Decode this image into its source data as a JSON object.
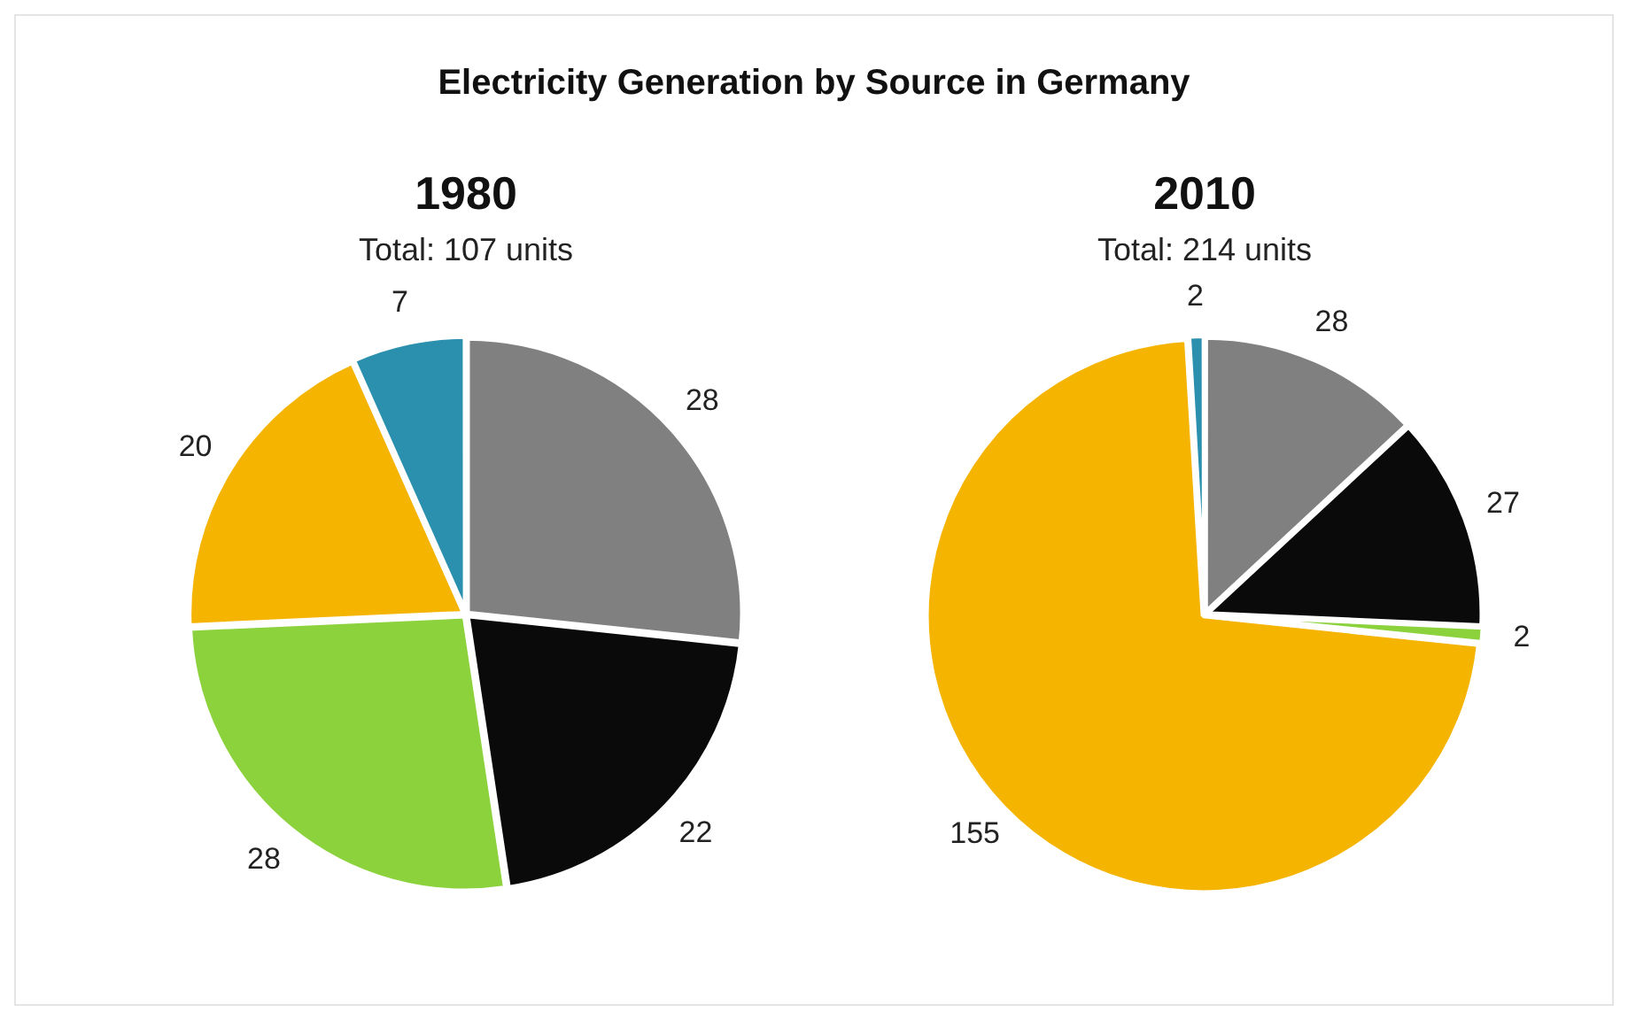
{
  "chart_data": [
    {
      "type": "other",
      "title": "Electricity Generation by Source in Germany"
    },
    {
      "type": "pie",
      "title": "1980",
      "subtitle": "Total: 107 units",
      "categories": [
        null,
        null,
        null,
        null,
        null
      ],
      "values": [
        28,
        22,
        28,
        20,
        7
      ],
      "colors": [
        "#808080",
        "#0a0a0a",
        "#8bd23c",
        "#f5b400",
        "#2b8fae"
      ],
      "data_labels": true
    },
    {
      "type": "pie",
      "title": "2010",
      "subtitle": "Total: 214 units",
      "categories": [
        null,
        null,
        null,
        null,
        null
      ],
      "values": [
        28,
        27,
        2,
        155,
        2
      ],
      "colors": [
        "#808080",
        "#0a0a0a",
        "#8bd23c",
        "#f5b400",
        "#2b8fae"
      ],
      "data_labels": true
    }
  ]
}
